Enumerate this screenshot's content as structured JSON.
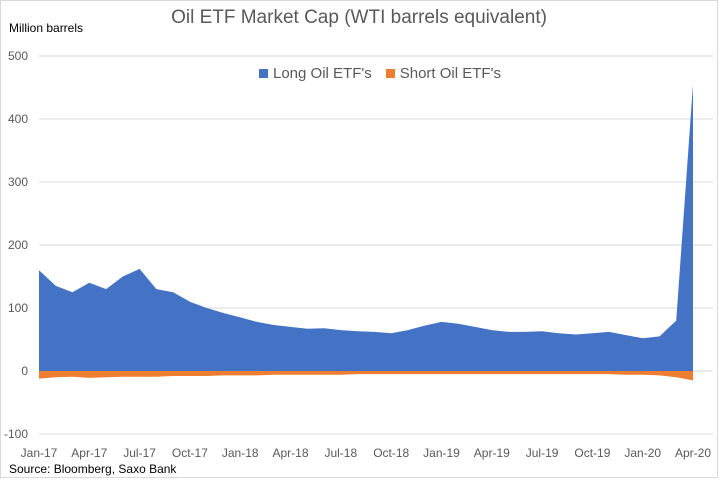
{
  "chart_data": {
    "type": "area",
    "title": "Oil ETF Market Cap (WTI barrels equivalent)",
    "ylabel": "Million barrels",
    "source": "Source: Bloomberg, Saxo Bank",
    "ylim": [
      -100,
      500
    ],
    "yticks": [
      -100,
      0,
      100,
      200,
      300,
      400,
      500
    ],
    "grid": true,
    "legend_position": "top",
    "xticks": [
      "Jan-17",
      "Apr-17",
      "Jul-17",
      "Oct-17",
      "Jan-18",
      "Apr-18",
      "Jul-18",
      "Oct-18",
      "Jan-19",
      "Apr-19",
      "Jul-19",
      "Oct-19",
      "Jan-20",
      "Apr-20"
    ],
    "x": [
      "2017-01",
      "2017-02",
      "2017-03",
      "2017-04",
      "2017-05",
      "2017-06",
      "2017-07",
      "2017-08",
      "2017-09",
      "2017-10",
      "2017-11",
      "2017-12",
      "2018-01",
      "2018-02",
      "2018-03",
      "2018-04",
      "2018-05",
      "2018-06",
      "2018-07",
      "2018-08",
      "2018-09",
      "2018-10",
      "2018-11",
      "2018-12",
      "2019-01",
      "2019-02",
      "2019-03",
      "2019-04",
      "2019-05",
      "2019-06",
      "2019-07",
      "2019-08",
      "2019-09",
      "2019-10",
      "2019-11",
      "2019-12",
      "2020-01",
      "2020-02",
      "2020-03",
      "2020-04"
    ],
    "series": [
      {
        "name": "Long Oil ETF's",
        "color": "#4472c4",
        "values": [
          160,
          135,
          125,
          140,
          130,
          150,
          162,
          130,
          125,
          110,
          100,
          92,
          85,
          78,
          73,
          70,
          67,
          68,
          65,
          63,
          62,
          60,
          65,
          72,
          78,
          75,
          70,
          65,
          62,
          62,
          63,
          60,
          58,
          60,
          62,
          57,
          52,
          55,
          80,
          455
        ]
      },
      {
        "name": "Short Oil ETF's",
        "color": "#ed7d31",
        "values": [
          -12,
          -10,
          -9,
          -11,
          -10,
          -9,
          -9,
          -9,
          -8,
          -8,
          -8,
          -7,
          -7,
          -7,
          -6,
          -6,
          -6,
          -6,
          -6,
          -5,
          -5,
          -5,
          -5,
          -5,
          -5,
          -5,
          -5,
          -5,
          -5,
          -5,
          -5,
          -5,
          -5,
          -5,
          -5,
          -6,
          -6,
          -7,
          -10,
          -15
        ]
      }
    ]
  }
}
